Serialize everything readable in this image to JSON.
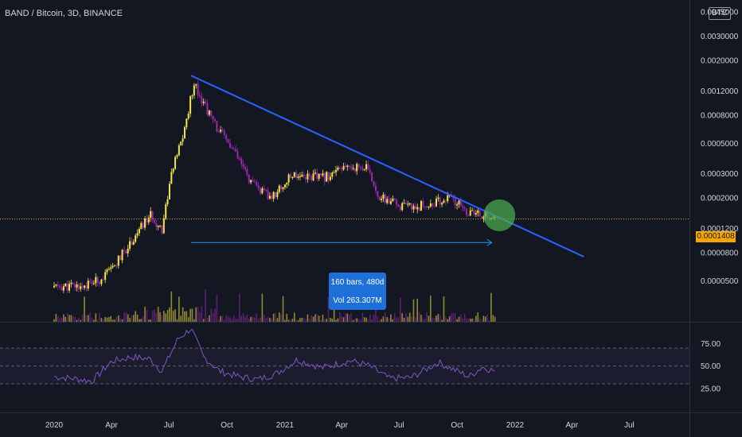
{
  "header": {
    "symbol": "BAND / Bitcoin, 3D, BINANCE",
    "currency_badge": "BTC"
  },
  "price_axis_labels": [
    "0.0045000",
    "0.0030000",
    "0.0020000",
    "0.0012000",
    "0.0008000",
    "0.0005000",
    "0.0003000",
    "0.0002000",
    "0.0001200",
    "0.0000800",
    "0.0000500"
  ],
  "last_price": "0.0001408",
  "measure_tool": {
    "bars": "160 bars, 480d",
    "volume": "Vol 263.307M"
  },
  "rsi_axis_labels": [
    "75.00",
    "50.00",
    "25.00"
  ],
  "time_axis_labels": [
    "2020",
    "Apr",
    "Jul",
    "Oct",
    "2021",
    "Apr",
    "Jul",
    "Oct",
    "2022",
    "Apr",
    "Jul"
  ],
  "colors": {
    "background": "#131722",
    "up_candle": "#f5e642",
    "down_candle": "#9c27b0",
    "trendline": "#2962ff",
    "rsi_line": "#7e57c2",
    "last_price": "#f7a600",
    "highlight_circle": "#4caf50"
  },
  "chart_data": {
    "type": "candlestick",
    "scale": "log",
    "ylim": [
      3e-05,
      0.0052
    ],
    "x_range": [
      "2020-01-01",
      "2022-08-15"
    ],
    "price_path": [
      [
        "2020-01-01",
        4.5e-05
      ],
      [
        "2020-02-15",
        4.6e-05
      ],
      [
        "2020-03-10",
        5e-05
      ],
      [
        "2020-04-01",
        6e-05
      ],
      [
        "2020-05-01",
        9.5e-05
      ],
      [
        "2020-06-01",
        0.00015
      ],
      [
        "2020-06-20",
        0.00012
      ],
      [
        "2020-07-05",
        0.0003
      ],
      [
        "2020-07-25",
        0.0006
      ],
      [
        "2020-08-10",
        0.0014
      ],
      [
        "2020-08-20",
        0.0011
      ],
      [
        "2020-09-10",
        0.0007
      ],
      [
        "2020-10-10",
        0.00045
      ],
      [
        "2020-11-10",
        0.00025
      ],
      [
        "2020-12-10",
        0.0002
      ],
      [
        "2021-01-15",
        0.0003
      ],
      [
        "2021-03-01",
        0.00028
      ],
      [
        "2021-04-15",
        0.00034
      ],
      [
        "2021-05-10",
        0.00033
      ],
      [
        "2021-06-01",
        0.0002
      ],
      [
        "2021-07-10",
        0.00017
      ],
      [
        "2021-08-20",
        0.00018
      ],
      [
        "2021-09-20",
        0.0002
      ],
      [
        "2021-10-20",
        0.000155
      ],
      [
        "2021-11-15",
        0.00015
      ],
      [
        "2021-12-01",
        0.000141
      ]
    ],
    "trendline": {
      "from": [
        "2020-08-05",
        0.00155
      ],
      "to": [
        "2022-04-20",
        7.5e-05
      ]
    },
    "measure_arrow": {
      "from": "2020-08-05",
      "to": "2021-11-25",
      "price": 9.5e-05,
      "bars": 160,
      "days": 480,
      "volume": "263.307M"
    },
    "last_close": 0.0001408,
    "highlight": {
      "date": "2021-12-02",
      "price": 0.00014
    },
    "rsi": {
      "levels": [
        70,
        50,
        30
      ],
      "ylim": [
        15,
        95
      ],
      "values": [
        [
          "2020-01-01",
          38
        ],
        [
          "2020-02-01",
          36
        ],
        [
          "2020-03-01",
          33
        ],
        [
          "2020-04-01",
          55
        ],
        [
          "2020-05-01",
          60
        ],
        [
          "2020-06-01",
          58
        ],
        [
          "2020-06-20",
          44
        ],
        [
          "2020-07-15",
          80
        ],
        [
          "2020-08-05",
          92
        ],
        [
          "2020-08-25",
          60
        ],
        [
          "2020-09-20",
          44
        ],
        [
          "2020-10-20",
          38
        ],
        [
          "2020-11-20",
          35
        ],
        [
          "2020-12-20",
          42
        ],
        [
          "2021-01-20",
          57
        ],
        [
          "2021-03-01",
          48
        ],
        [
          "2021-04-15",
          56
        ],
        [
          "2021-05-15",
          50
        ],
        [
          "2021-06-15",
          36
        ],
        [
          "2021-07-20",
          37
        ],
        [
          "2021-09-01",
          54
        ],
        [
          "2021-09-20",
          48
        ],
        [
          "2021-10-20",
          38
        ],
        [
          "2021-11-10",
          49
        ],
        [
          "2021-12-01",
          44
        ]
      ]
    }
  }
}
